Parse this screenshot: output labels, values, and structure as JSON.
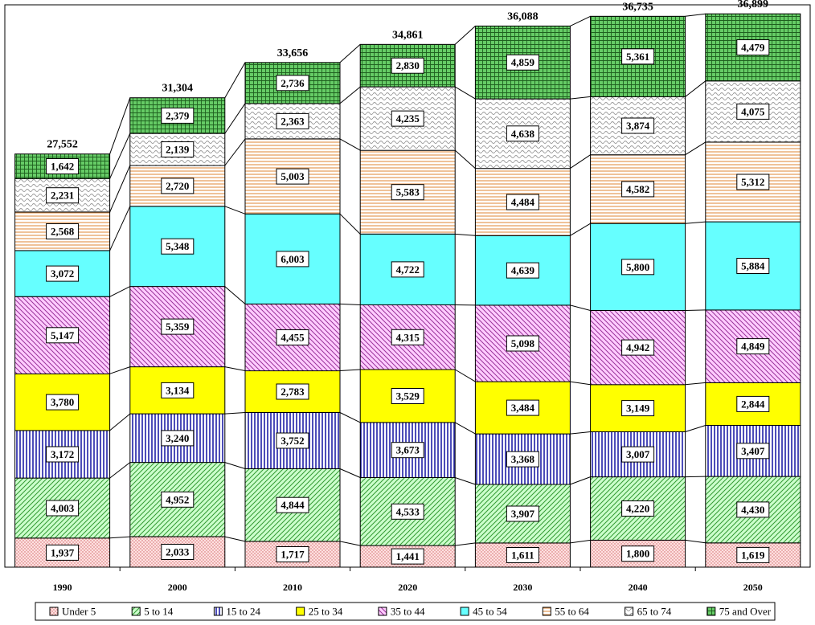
{
  "chart_data": {
    "type": "bar",
    "stacked": true,
    "categories": [
      "1990",
      "2000",
      "2010",
      "2020",
      "2030",
      "2040",
      "2050"
    ],
    "totals": [
      "27,552",
      "31,304",
      "33,656",
      "34,861",
      "36,088",
      "36,735",
      "36,899"
    ],
    "series": [
      {
        "name": "Under 5",
        "color": "#ffcccc",
        "pattern": "dots",
        "values": [
          1937,
          2033,
          1717,
          1441,
          1611,
          1800,
          1619
        ]
      },
      {
        "name": "5 to 14",
        "color": "#ccffcc",
        "pattern": "diag-green",
        "values": [
          4003,
          4952,
          4844,
          4533,
          3907,
          4220,
          4430
        ]
      },
      {
        "name": "15 to 24",
        "color": "#ffffff",
        "pattern": "vlines-blue",
        "values": [
          3172,
          3240,
          3752,
          3673,
          3368,
          3007,
          3407
        ]
      },
      {
        "name": "25 to 34",
        "color": "#ffff00",
        "pattern": "solid",
        "values": [
          3780,
          3134,
          2783,
          3529,
          3484,
          3149,
          2844
        ]
      },
      {
        "name": "35 to 44",
        "color": "#ffccff",
        "pattern": "diag-purple",
        "values": [
          5147,
          5359,
          4455,
          4315,
          5098,
          4942,
          4849
        ]
      },
      {
        "name": "45 to 54",
        "color": "#66ffff",
        "pattern": "solid",
        "values": [
          3072,
          5348,
          6003,
          4722,
          4639,
          5800,
          5884
        ]
      },
      {
        "name": "55 to 64",
        "color": "#ffffff",
        "pattern": "hlines-orange",
        "values": [
          2568,
          2720,
          5003,
          5583,
          4484,
          4582,
          5312
        ]
      },
      {
        "name": "65 to 74",
        "color": "#ffffff",
        "pattern": "waves",
        "values": [
          2231,
          2139,
          2363,
          4235,
          4638,
          3874,
          4075
        ]
      },
      {
        "name": "75 and Over",
        "color": "#66cc66",
        "pattern": "grid-green",
        "values": [
          1642,
          2379,
          2736,
          2830,
          4859,
          5361,
          4479
        ]
      }
    ],
    "ylim": [
      0,
      37500
    ],
    "grid": false,
    "legend_position": "bottom",
    "title": "",
    "xlabel": "",
    "ylabel": ""
  }
}
